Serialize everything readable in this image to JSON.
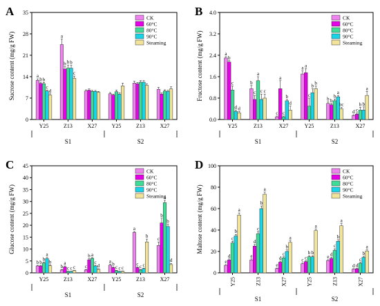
{
  "colors": {
    "CK": "#ee82ee",
    "60°C": "#e600e6",
    "80°C": "#3ddc97",
    "90°C": "#19d3e6",
    "Steaming": "#f2e39a",
    "axis": "#000000"
  },
  "chart_data": [
    {
      "type": "bar",
      "panel": "A",
      "ylabel": "Sucrose content (mg/g FW)",
      "ylim": [
        0,
        35
      ],
      "yticks": [
        "0",
        "7",
        "14",
        "21",
        "28",
        "35"
      ],
      "groups": [
        "S1",
        "S2"
      ],
      "categories": [
        "Y25",
        "Z13",
        "X27",
        "Y25",
        "Z13",
        "X27"
      ],
      "legend": [
        "CK",
        "60°C",
        "80°C",
        "90°C",
        "Steaming"
      ],
      "legend_position": "top-right",
      "series": [
        {
          "name": "CK",
          "values": [
            12.8,
            24.5,
            9.3,
            8.4,
            11.9,
            9.9
          ],
          "errors": [
            0.5,
            1.8,
            0.4,
            0.4,
            0.6,
            0.6
          ],
          "letters": [
            "a",
            "a",
            "",
            "",
            "",
            ""
          ]
        },
        {
          "name": "60°C",
          "values": [
            11.8,
            16.5,
            9.6,
            8.0,
            11.7,
            8.3
          ],
          "errors": [
            0.4,
            0.8,
            0.4,
            0.3,
            0.4,
            0.4
          ],
          "letters": [
            "b",
            "b",
            "",
            "",
            "",
            ""
          ]
        },
        {
          "name": "80°C",
          "values": [
            11.7,
            16.8,
            9.2,
            9.1,
            12.2,
            9.3
          ],
          "errors": [
            0.4,
            1.0,
            0.3,
            0.5,
            0.5,
            0.4
          ],
          "letters": [
            "b",
            "b",
            "",
            "",
            "",
            ""
          ]
        },
        {
          "name": "90°C",
          "values": [
            9.3,
            16.8,
            9.2,
            8.3,
            12.2,
            9.2
          ],
          "errors": [
            0.3,
            0.9,
            0.3,
            0.4,
            0.5,
            0.4
          ],
          "letters": [
            "c",
            "b",
            "",
            "",
            "",
            ""
          ]
        },
        {
          "name": "Steaming",
          "values": [
            8.0,
            13.5,
            8.9,
            11.0,
            11.2,
            10.0
          ],
          "errors": [
            0.4,
            0.7,
            0.3,
            0.9,
            0.5,
            0.7
          ],
          "letters": [
            "d",
            "c",
            "",
            "",
            "",
            ""
          ]
        }
      ]
    },
    {
      "type": "bar",
      "panel": "B",
      "ylabel": "Fructose content (mg/g FW)",
      "ylim": [
        0,
        4.0
      ],
      "yticks": [
        "0.0",
        "0.8",
        "1.6",
        "2.4",
        "3.2",
        "4.0"
      ],
      "groups": [
        "S1",
        "S2"
      ],
      "categories": [
        "Y25",
        "Z13",
        "X27",
        "Y25",
        "Z13",
        "X27"
      ],
      "legend": [
        "CK",
        "60°C",
        "80°C",
        "90°C",
        "Steaming"
      ],
      "legend_position": "top-right",
      "series": [
        {
          "name": "CK",
          "values": [
            2.3,
            1.15,
            0.1,
            1.7,
            0.6,
            0.15
          ],
          "errors": [
            0.05,
            0.12,
            0.03,
            0.12,
            0.06,
            0.03
          ],
          "letters": [
            "a",
            "b",
            "c",
            "a",
            "b",
            "d"
          ]
        },
        {
          "name": "60°C",
          "values": [
            2.15,
            0.75,
            1.15,
            1.75,
            0.55,
            0.2
          ],
          "errors": [
            0.05,
            0.15,
            0.3,
            0.15,
            0.05,
            0.05
          ],
          "letters": [
            "b",
            "c",
            "a",
            "a",
            "b",
            "c"
          ]
        },
        {
          "name": "80°C",
          "values": [
            1.1,
            1.45,
            0.1,
            0.5,
            0.7,
            0.35
          ],
          "errors": [
            0.15,
            0.15,
            0.03,
            0.3,
            0.06,
            0.1
          ],
          "letters": [
            "c",
            "a",
            "c",
            "c",
            "b",
            "b"
          ]
        },
        {
          "name": "90°C",
          "values": [
            0.3,
            0.75,
            0.7,
            1.0,
            0.85,
            0.35
          ],
          "errors": [
            0.05,
            0.2,
            0.05,
            0.15,
            0.05,
            0.12
          ],
          "letters": [
            "d",
            "c",
            "b",
            "b",
            "a",
            "b"
          ]
        },
        {
          "name": "Steaming",
          "values": [
            0.25,
            0.8,
            0.35,
            1.15,
            0.4,
            0.9
          ],
          "errors": [
            0.05,
            0.15,
            0.15,
            0.1,
            0.05,
            0.15
          ],
          "letters": [
            "d",
            "c",
            "d",
            "b",
            "bc",
            "a"
          ]
        }
      ]
    },
    {
      "type": "bar",
      "panel": "C",
      "ylabel": "Glucose content (mg/g FW)",
      "ylim": [
        0,
        45
      ],
      "yticks": [
        "0",
        "5",
        "10",
        "15",
        "20",
        "25",
        "30",
        "35",
        "40",
        "45"
      ],
      "groups": [
        "S1",
        "S2"
      ],
      "categories": [
        "Y25",
        "Z13",
        "X27",
        "Y25",
        "Z13",
        "X27"
      ],
      "legend": [
        "CK",
        "60°C",
        "80°C",
        "90°C",
        "Steaming"
      ],
      "legend_position": "top-right",
      "series": [
        {
          "name": "CK",
          "values": [
            2.9,
            1.2,
            1.2,
            3.2,
            17.0,
            11.5
          ],
          "errors": [
            0.3,
            0.2,
            0.2,
            0.4,
            0.4,
            1.5
          ],
          "letters": [
            "b",
            "b",
            "c",
            "a",
            "a",
            "c"
          ]
        },
        {
          "name": "60°C",
          "values": [
            2.9,
            2.5,
            5.5,
            2.2,
            2.2,
            21.0
          ],
          "errors": [
            0.3,
            0.4,
            0.5,
            0.3,
            0.3,
            2.0
          ],
          "letters": [
            "b",
            "a",
            "b",
            "b",
            "c",
            "b"
          ]
        },
        {
          "name": "80°C",
          "values": [
            4.1,
            0.6,
            6.1,
            0.9,
            1.2,
            29.5
          ],
          "errors": [
            0.4,
            0.1,
            0.3,
            0.2,
            0.2,
            1.0
          ],
          "letters": [
            "b",
            "c",
            "a",
            "c",
            "c",
            "a"
          ]
        },
        {
          "name": "90°C",
          "values": [
            6.0,
            0.6,
            2.9,
            0.6,
            1.8,
            19.5
          ],
          "errors": [
            0.5,
            0.1,
            0.3,
            0.1,
            0.2,
            1.0
          ],
          "letters": [
            "a",
            "c",
            "c",
            "c",
            "c",
            "b"
          ]
        },
        {
          "name": "Steaming",
          "values": [
            3.0,
            1.0,
            1.5,
            0.7,
            13.0,
            3.5
          ],
          "errors": [
            0.4,
            0.1,
            0.2,
            0.1,
            1.2,
            0.5
          ],
          "letters": [
            "b",
            "c",
            "d",
            "c",
            "b",
            "d"
          ]
        }
      ]
    },
    {
      "type": "bar",
      "panel": "D",
      "ylabel": "Maltose content (mg/g FW)",
      "ylim": [
        0,
        100
      ],
      "yticks": [
        "0",
        "20",
        "40",
        "60",
        "80",
        "100"
      ],
      "groups": [
        "S1",
        "S2"
      ],
      "categories": [
        "Y25",
        "Z13",
        "X27",
        "Y25",
        "Z13",
        "X27"
      ],
      "legend": [
        "CK",
        "60°C",
        "80°C",
        "90°C",
        "Steaming"
      ],
      "legend_position": "top-right",
      "series": [
        {
          "name": "CK",
          "values": [
            7.0,
            12.0,
            4.0,
            8.5,
            11.5,
            3.5
          ],
          "errors": [
            0.8,
            1.0,
            0.5,
            0.7,
            0.8,
            0.4
          ],
          "letters": [
            "e",
            "e",
            "e",
            "c",
            "e",
            "d"
          ]
        },
        {
          "name": "60°C",
          "values": [
            12.0,
            25.0,
            10.0,
            10.5,
            13.5,
            3.8
          ],
          "errors": [
            1.0,
            1.5,
            1.0,
            0.8,
            1.0,
            0.4
          ],
          "letters": [
            "d",
            "d",
            "d",
            "c",
            "d",
            "d"
          ]
        },
        {
          "name": "80°C",
          "values": [
            28.0,
            36.5,
            14.0,
            15.0,
            21.0,
            9.0
          ],
          "errors": [
            1.5,
            2.0,
            1.0,
            1.0,
            1.5,
            0.8
          ],
          "letters": [
            "c",
            "c",
            "c",
            "b",
            "c",
            "c"
          ]
        },
        {
          "name": "90°C",
          "values": [
            34.5,
            60.0,
            20.0,
            15.0,
            29.5,
            14.5
          ],
          "errors": [
            1.5,
            2.5,
            1.5,
            1.0,
            1.5,
            1.0
          ],
          "letters": [
            "b",
            "b",
            "b",
            "b",
            "b",
            "b"
          ]
        },
        {
          "name": "Steaming",
          "values": [
            54.0,
            73.5,
            28.5,
            39.5,
            44.0,
            20.5
          ],
          "errors": [
            2.0,
            2.0,
            1.5,
            1.5,
            2.0,
            1.0
          ],
          "letters": [
            "a",
            "a",
            "a",
            "a",
            "a",
            "a"
          ]
        }
      ]
    }
  ]
}
